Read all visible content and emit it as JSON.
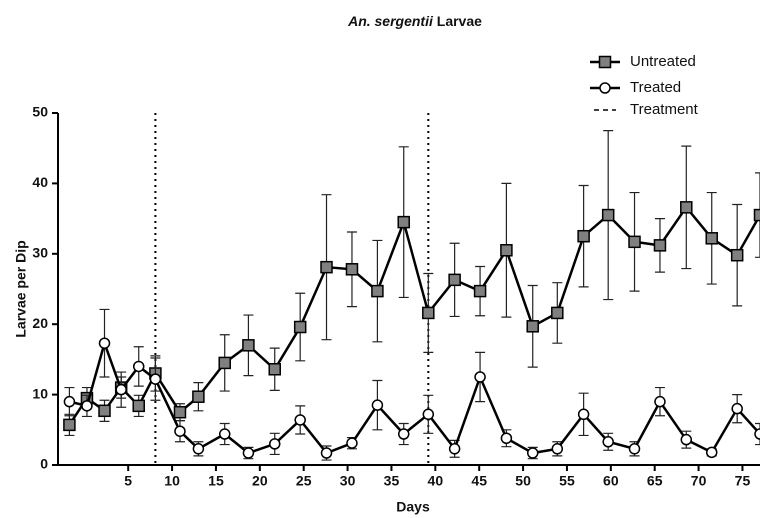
{
  "chart_data": {
    "type": "line",
    "title": {
      "species": "An. sergentii",
      "text": "Larvae"
    },
    "x_label": "Days",
    "y_label": "Larvae per Dip",
    "xlim": [
      -3,
      77
    ],
    "ylim": [
      0,
      50
    ],
    "xticks": [
      5,
      10,
      15,
      20,
      25,
      30,
      35,
      40,
      45,
      50,
      55,
      60,
      65,
      70,
      75
    ],
    "yticks": [
      0,
      10,
      20,
      30,
      40,
      50
    ],
    "x": [
      -1.7,
      0.3,
      2.3,
      4.2,
      6.2,
      8.1,
      10.9,
      13,
      16,
      18.7,
      21.7,
      24.6,
      27.6,
      30.5,
      33.4,
      36.4,
      39.2,
      42.2,
      45.1,
      48.1,
      51.1,
      53.9,
      56.9,
      59.7,
      62.7,
      65.6,
      68.6,
      71.5,
      74.4,
      77
    ],
    "series": [
      {
        "name": "Untreated",
        "marker": "square",
        "color": "#808080",
        "values": [
          5.7,
          9.5,
          7.7,
          11,
          8.4,
          13,
          7.5,
          9.7,
          14.5,
          17,
          13.6,
          19.6,
          28.1,
          27.8,
          24.7,
          34.5,
          21.6,
          26.3,
          24.7,
          30.5,
          19.7,
          21.6,
          32.5,
          35.5,
          31.7,
          31.2,
          36.6,
          32.2,
          29.8,
          35.5
        ],
        "errors": [
          1.5,
          1.5,
          1.5,
          1.5,
          1.5,
          2.5,
          1.2,
          2,
          4,
          4.3,
          3,
          4.8,
          10.3,
          5.3,
          7.2,
          10.7,
          5.6,
          5.2,
          3.5,
          9.5,
          5.8,
          4.3,
          7.2,
          12,
          7,
          3.8,
          8.7,
          6.5,
          7.2,
          6
        ]
      },
      {
        "name": "Treated",
        "marker": "circle",
        "color": "#ffffff",
        "values": [
          9,
          8.4,
          17.3,
          10.7,
          14,
          12.2,
          4.8,
          2.3,
          4.4,
          1.7,
          3,
          6.4,
          1.7,
          3.1,
          8.5,
          4.4,
          7.2,
          2.3,
          12.5,
          3.8,
          1.7,
          2.3,
          7.2,
          3.3,
          2.3,
          9,
          3.6,
          1.8,
          8,
          4.4
        ],
        "errors": [
          2,
          1.5,
          4.8,
          2.5,
          2.8,
          3,
          1.5,
          1,
          1.5,
          0.8,
          1.5,
          2,
          1,
          0.8,
          3.5,
          1.5,
          2.7,
          1.2,
          3.5,
          1.2,
          0.8,
          1,
          3,
          1.2,
          1,
          2,
          1.2,
          0.5,
          2,
          1.5
        ]
      }
    ],
    "treatment": {
      "name": "Treatment",
      "days": [
        8.1,
        39.2
      ]
    },
    "legend": "top-right"
  }
}
